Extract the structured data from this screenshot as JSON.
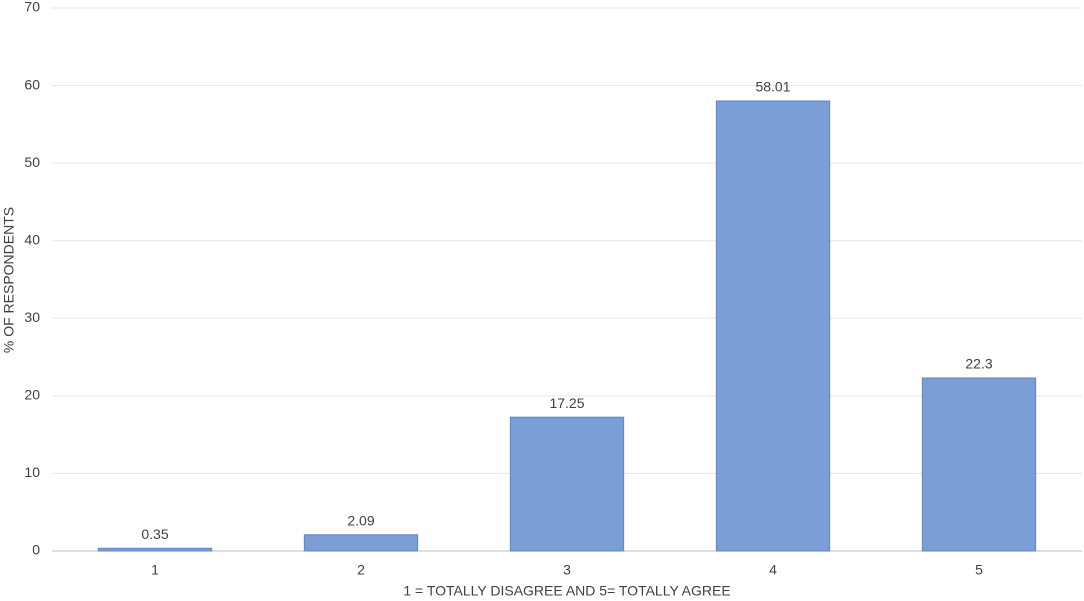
{
  "chart_data": {
    "type": "bar",
    "x_label": "1 = TOTALLY DISAGREE AND 5= TOTALLY AGREE",
    "y_label": "% OF RESPONDENTS",
    "categories": [
      "1",
      "2",
      "3",
      "4",
      "5"
    ],
    "values": [
      0.35,
      2.09,
      17.25,
      58.01,
      22.3
    ],
    "color": "#7b9ed6",
    "ylim": [
      0,
      70
    ],
    "yticks": [
      0,
      10,
      20,
      30,
      40,
      50,
      60,
      70
    ],
    "grid": true
  }
}
